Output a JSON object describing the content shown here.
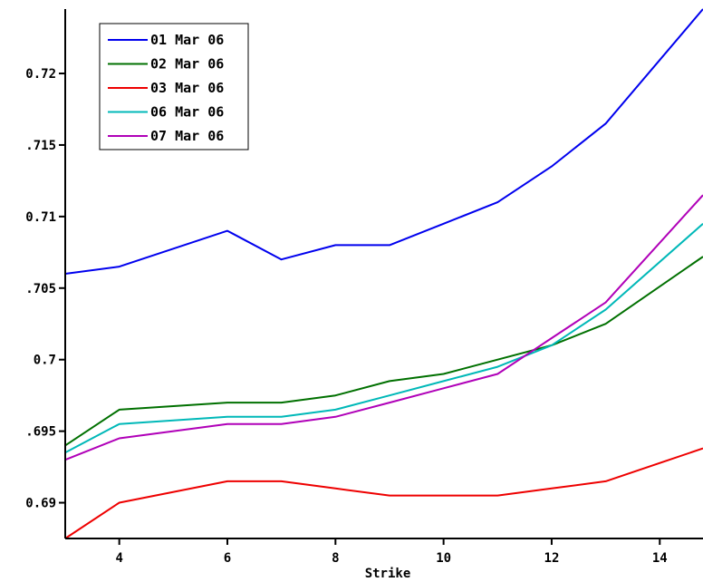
{
  "chart_data": {
    "type": "line",
    "title": "",
    "xlabel": "Strike",
    "ylabel": "",
    "xlim": [
      3,
      14.8
    ],
    "ylim": [
      0.6875,
      0.7245
    ],
    "x_ticks": [
      4,
      6,
      8,
      10,
      12,
      14
    ],
    "x_tick_labels": [
      "4",
      "6",
      "8",
      "10",
      "12",
      "14"
    ],
    "y_ticks": [
      0.69,
      0.695,
      0.7,
      0.705,
      0.71,
      0.715,
      0.72
    ],
    "y_tick_labels": [
      "0.69",
      ".695",
      "0.7",
      ".705",
      "0.71",
      ".715",
      "0.72"
    ],
    "grid": false,
    "legend_position": "top-left",
    "x": [
      3,
      4,
      6,
      7,
      8,
      9,
      10,
      11,
      12,
      13,
      14.8
    ],
    "series": [
      {
        "name": "01 Mar 06",
        "color": "#0000ee",
        "values": [
          0.706,
          0.7065,
          0.709,
          0.707,
          0.708,
          0.708,
          0.7095,
          0.711,
          0.7135,
          0.7165,
          0.7245
        ]
      },
      {
        "name": "02 Mar 06",
        "color": "#007000",
        "values": [
          0.694,
          0.6965,
          0.697,
          0.697,
          0.6975,
          0.6985,
          0.699,
          0.7,
          0.701,
          0.7025,
          0.7072
        ]
      },
      {
        "name": "03 Mar 06",
        "color": "#ee0000",
        "values": [
          0.6875,
          0.69,
          0.6915,
          0.6915,
          0.691,
          0.6905,
          0.6905,
          0.6905,
          0.691,
          0.6915,
          0.6938
        ]
      },
      {
        "name": "06 Mar 06",
        "color": "#00b8b8",
        "values": [
          0.6935,
          0.6955,
          0.696,
          0.696,
          0.6965,
          0.6975,
          0.6985,
          0.6995,
          0.701,
          0.7035,
          0.7095
        ]
      },
      {
        "name": "07 Mar 06",
        "color": "#b000b8",
        "values": [
          0.693,
          0.6945,
          0.6955,
          0.6955,
          0.696,
          0.697,
          0.698,
          0.699,
          0.7015,
          0.704,
          0.7115
        ]
      }
    ]
  }
}
